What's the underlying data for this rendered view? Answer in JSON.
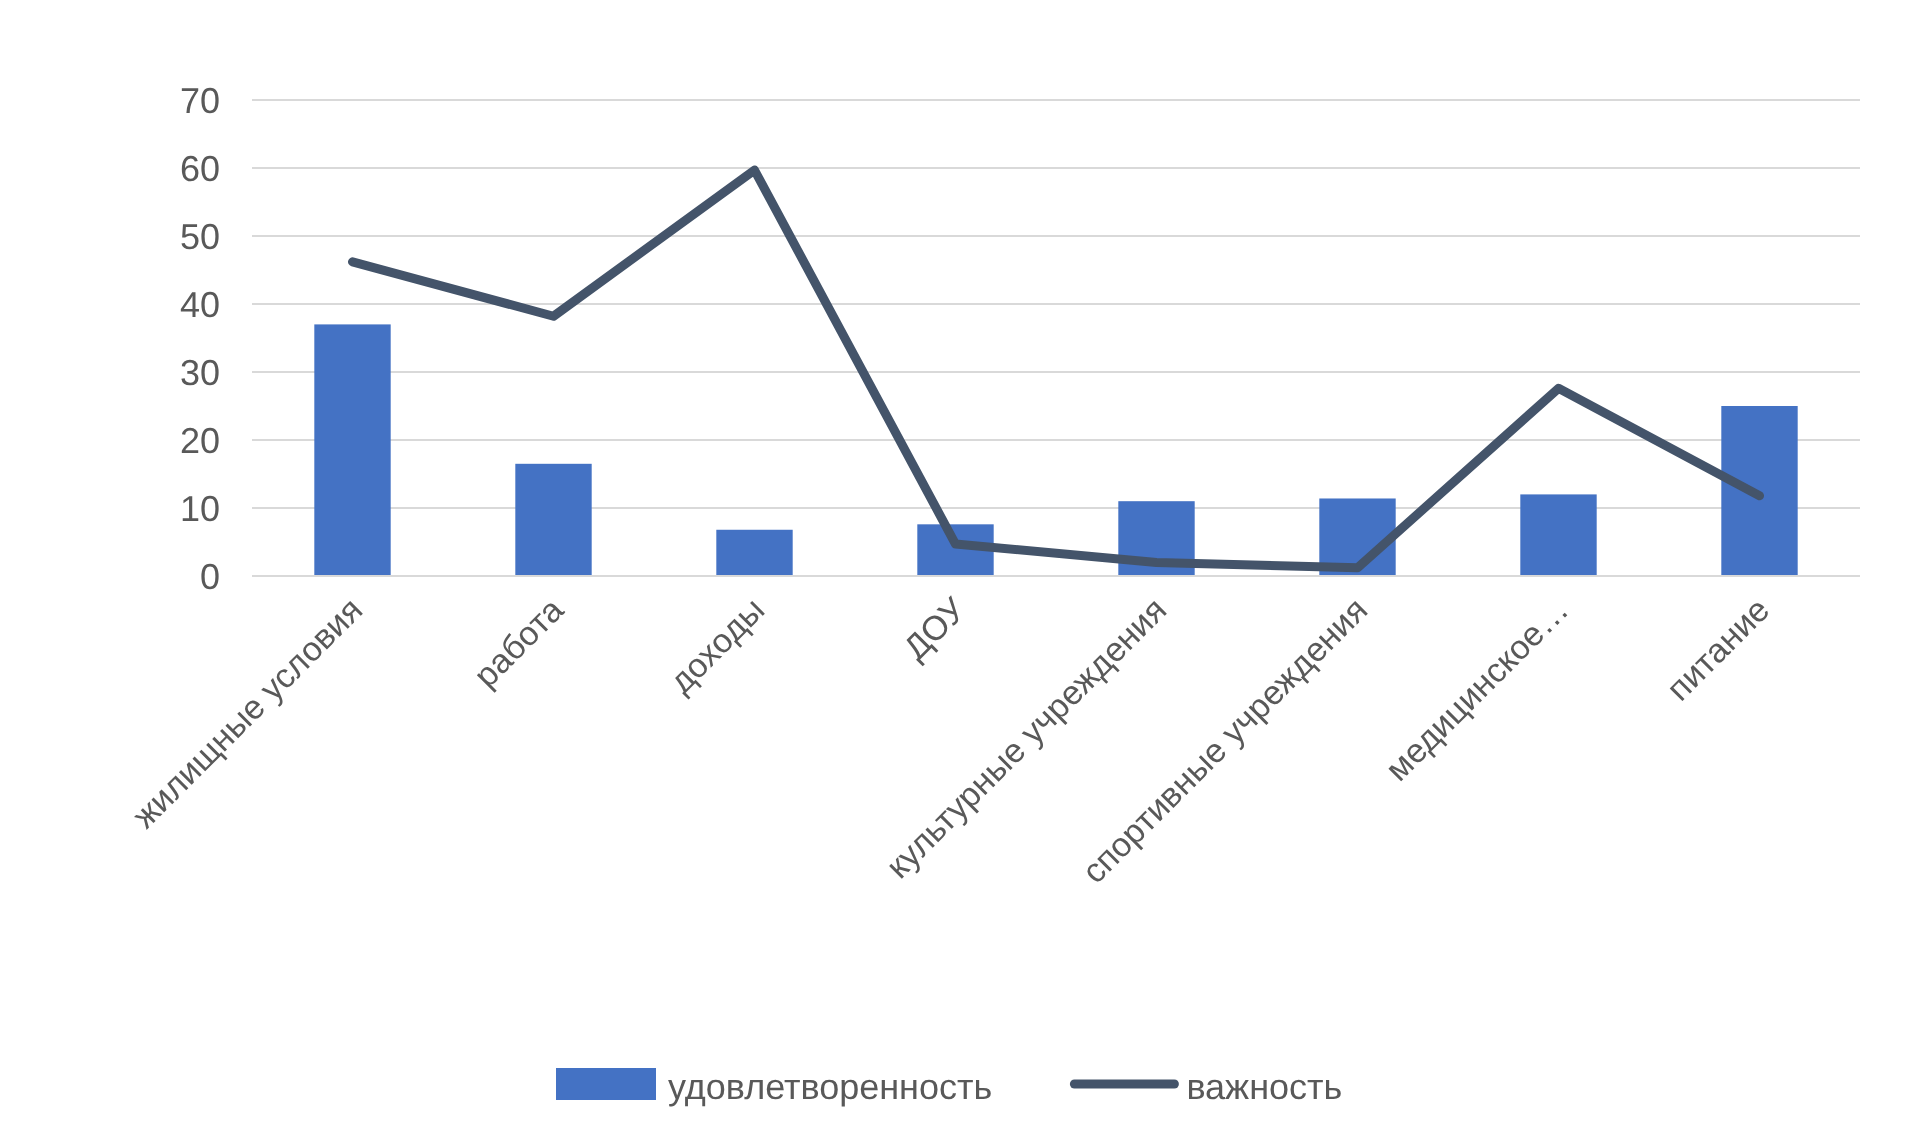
{
  "chart_data": {
    "type": "bar",
    "categories": [
      "жилищные условия",
      "работа",
      "доходы",
      "ДОУ",
      "культурные учреждения",
      "спортивные учреждения",
      "медицинское…",
      "питание"
    ],
    "series": [
      {
        "name": "удовлетворенность",
        "color": "#4472c4",
        "values": [
          37,
          16.5,
          6.8,
          7.6,
          11,
          11.4,
          12,
          25
        ]
      },
      {
        "name": "важность",
        "type": "line",
        "color": "#44546a",
        "values": [
          46.2,
          38.2,
          59.7,
          4.7,
          2,
          1.2,
          27.6,
          11.8
        ]
      }
    ],
    "ylim": [
      0,
      70
    ],
    "yticks": [
      0,
      10,
      20,
      30,
      40,
      50,
      60,
      70
    ],
    "grid": "y",
    "legend": "bottom",
    "marker": "none",
    "line_style": "solid"
  }
}
